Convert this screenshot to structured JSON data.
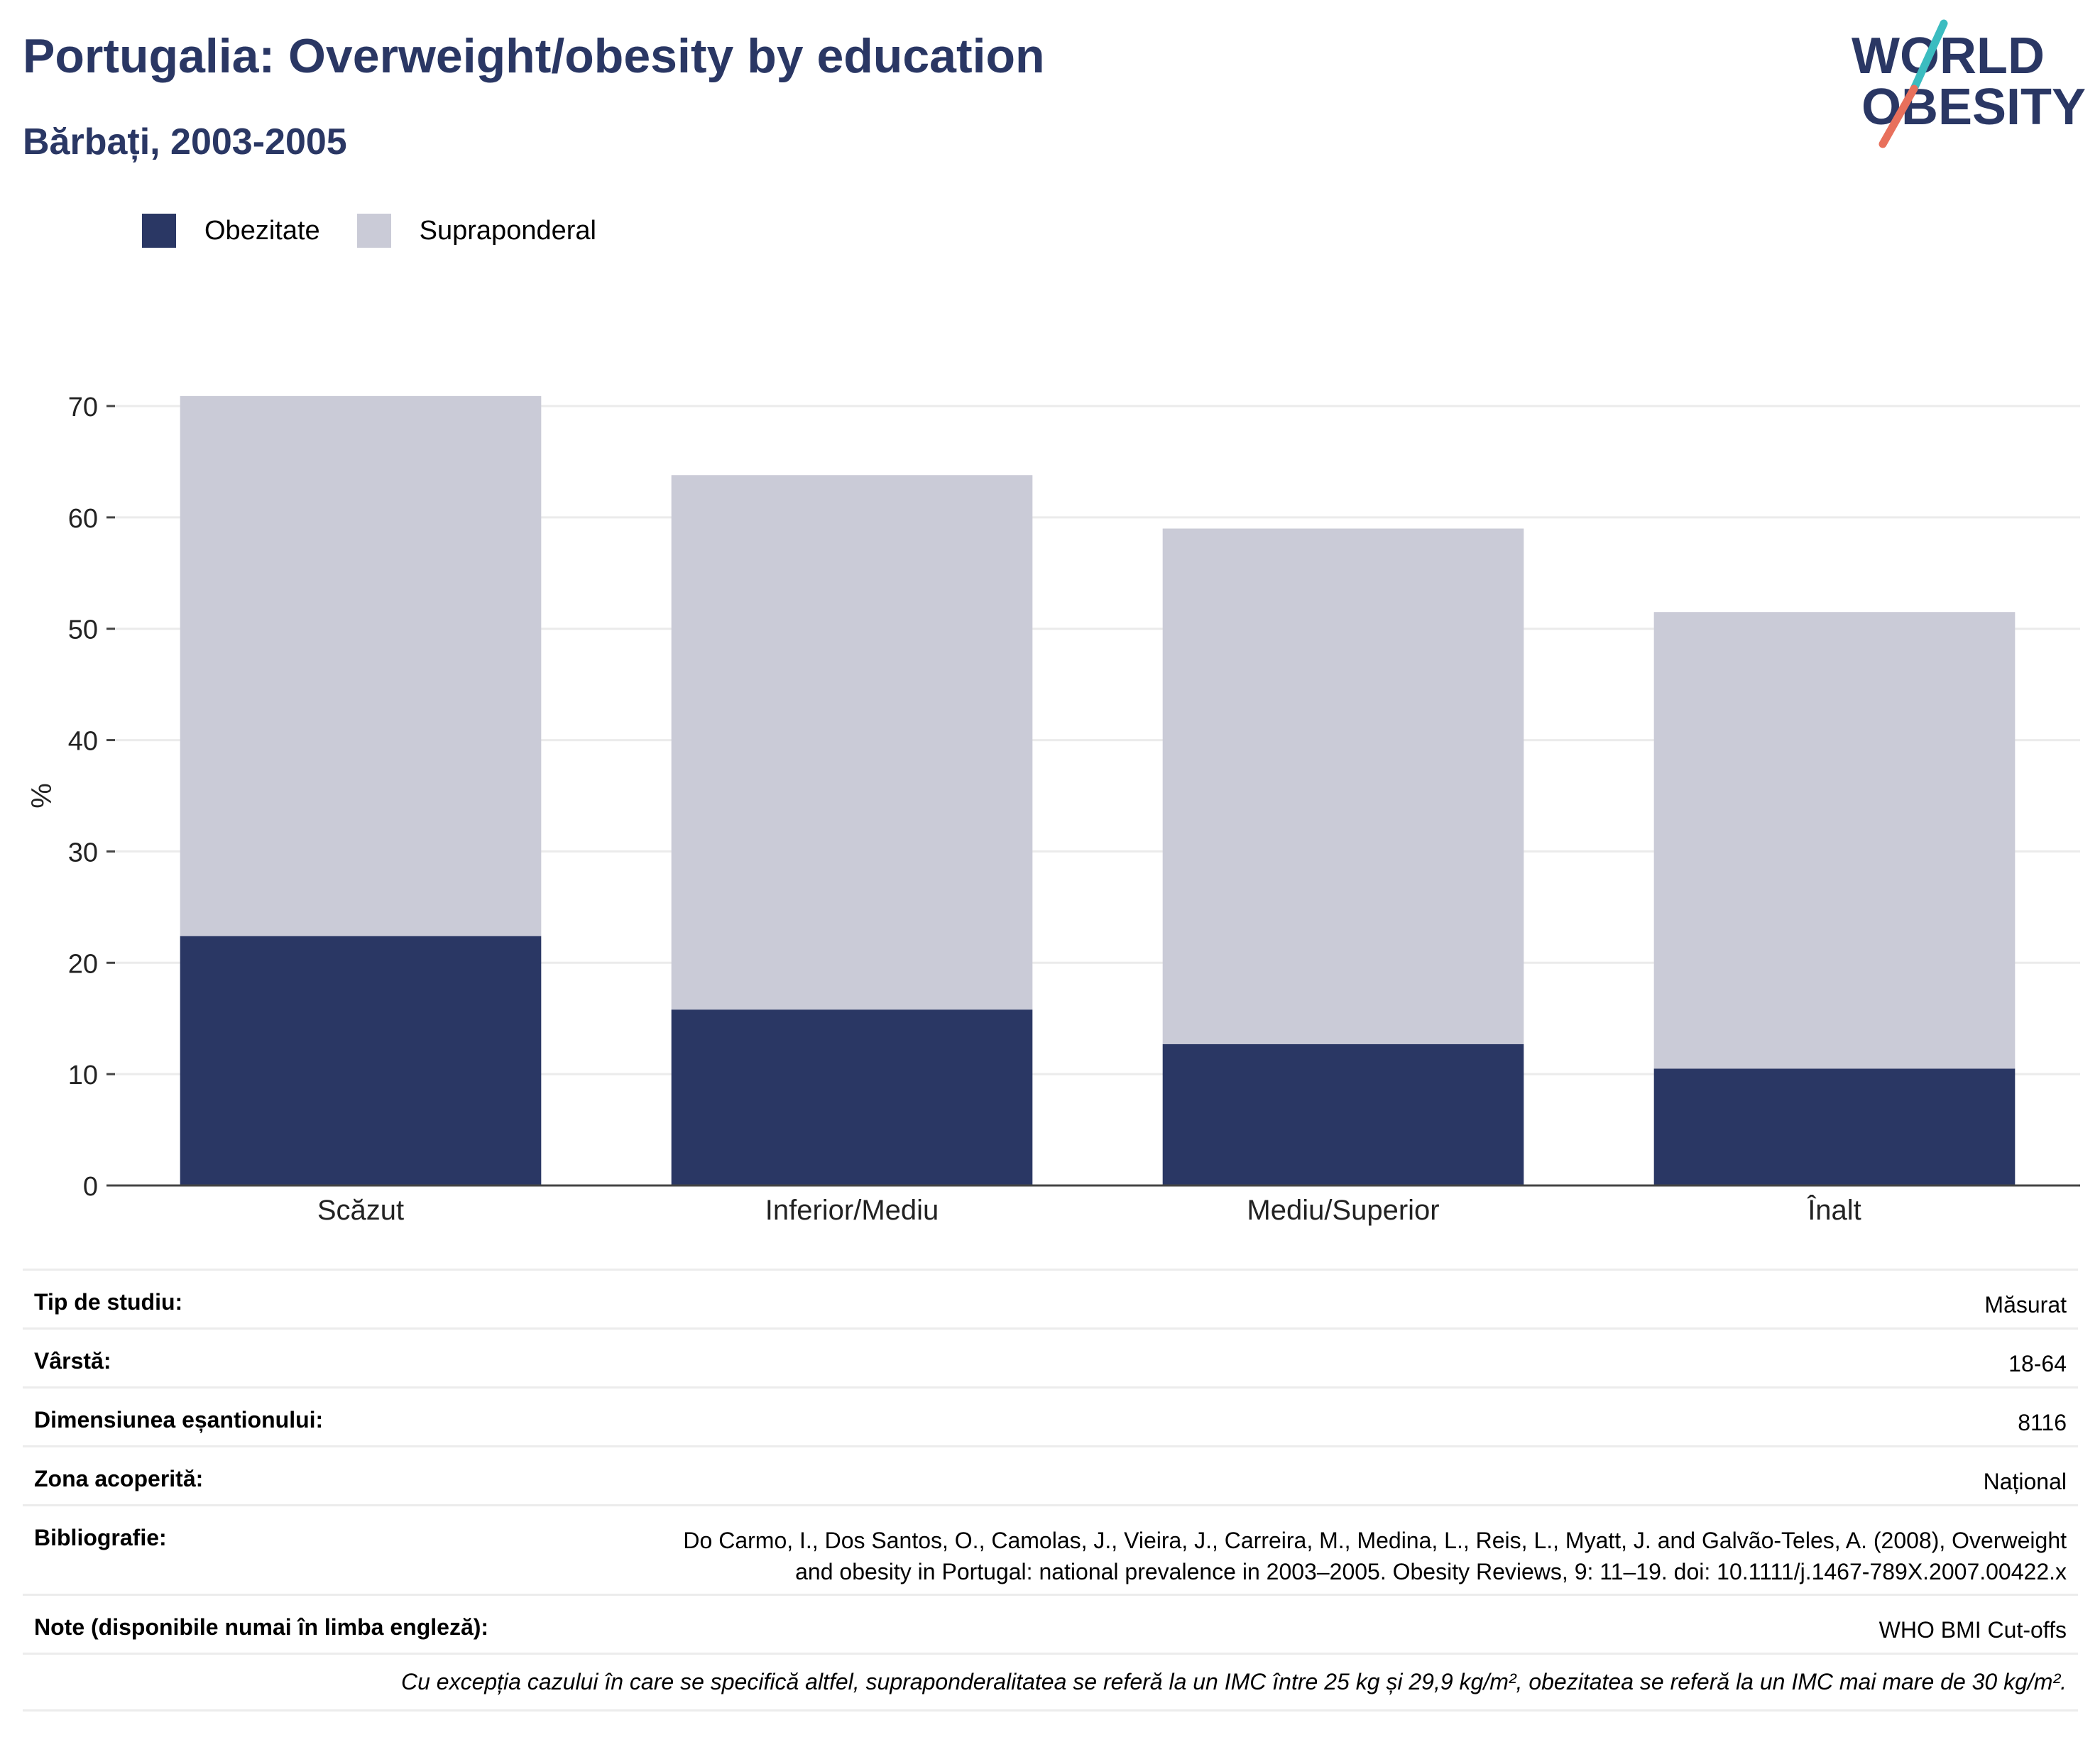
{
  "header": {
    "title": "Portugalia: Overweight/obesity by education",
    "subtitle": "Bărbați, 2003-2005"
  },
  "logo": {
    "line1": "WORLD",
    "line2": "OBESITY",
    "colors": {
      "text": "#2a3764",
      "accent_teal": "#3bbcc0",
      "accent_coral": "#e8705c"
    }
  },
  "legend": [
    {
      "label": "Obezitate",
      "color": "#2a3764"
    },
    {
      "label": "Supraponderal",
      "color": "#cacbd7"
    }
  ],
  "chart_data": {
    "type": "bar",
    "stacked": true,
    "categories": [
      "Scăzut",
      "Inferior/Mediu",
      "Mediu/Superior",
      "Înalt"
    ],
    "series": [
      {
        "name": "Obezitate",
        "values": [
          22.4,
          15.8,
          12.7,
          10.5
        ],
        "color": "#2a3764"
      },
      {
        "name": "Supraponderal",
        "values": [
          48.5,
          48.0,
          46.3,
          41.0
        ],
        "color": "#cacbd7"
      }
    ],
    "xlabel": "",
    "ylabel": "%",
    "ylim": [
      0,
      70
    ],
    "yticks": [
      0,
      10,
      20,
      30,
      40,
      50,
      60,
      70
    ],
    "grid": true,
    "legend_position": "top-left"
  },
  "info": {
    "rows": [
      {
        "label": "Tip de studiu:",
        "value": "Măsurat"
      },
      {
        "label": "Vârstă:",
        "value": "18-64"
      },
      {
        "label": "Dimensiunea eșantionului:",
        "value": "8116"
      },
      {
        "label": "Zona acoperită:",
        "value": "Național"
      },
      {
        "label": "Bibliografie:",
        "value_lines": [
          "Do Carmo, I., Dos Santos, O., Camolas, J., Vieira, J., Carreira, M., Medina, L., Reis, L., Myatt, J. and Galvão-Teles, A. (2008), Overweight",
          "and obesity in Portugal: national prevalence in 2003–2005. Obesity Reviews, 9: 11–19. doi: 10.1111/j.1467-789X.2007.00422.x"
        ]
      },
      {
        "label": "Note (disponibile numai în limba engleză):",
        "value": "WHO BMI Cut-offs"
      }
    ],
    "note": "Cu excepția cazului în care se specifică altfel, supraponderalitatea se referă la un IMC între 25 kg și 29,9 kg/m², obezitatea se referă la un IMC mai mare de 30 kg/m²."
  }
}
